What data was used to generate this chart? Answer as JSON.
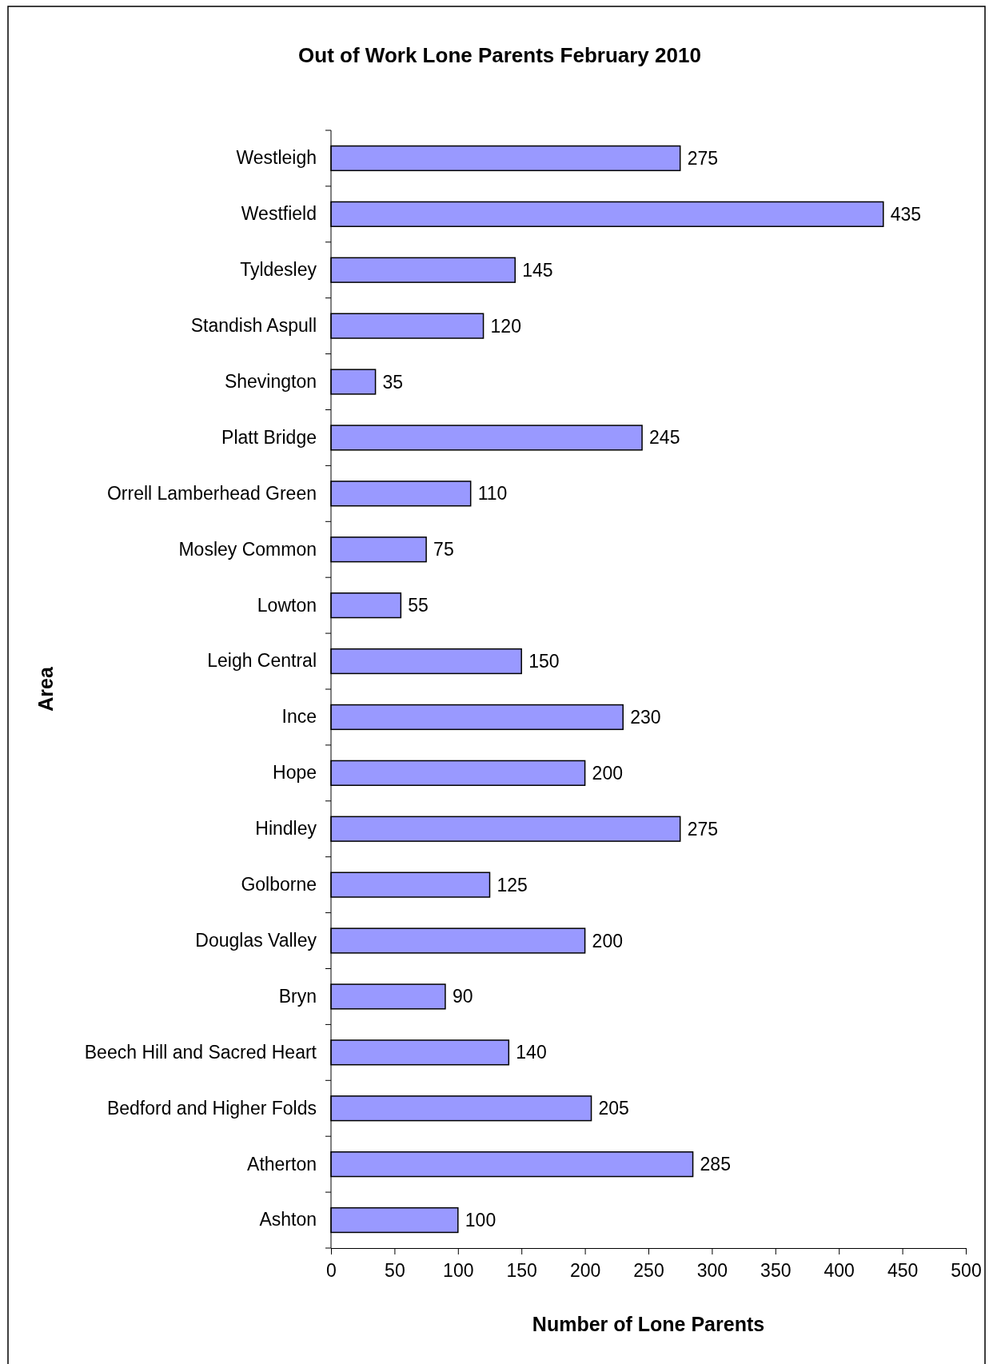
{
  "chart_data": {
    "type": "bar",
    "orientation": "horizontal",
    "title": "Out of Work Lone Parents February 2010",
    "xlabel": "Number of Lone Parents",
    "ylabel": "Area",
    "categories": [
      "Westleigh",
      "Westfield",
      "Tyldesley",
      "Standish Aspull",
      "Shevington",
      "Platt Bridge",
      "Orrell Lamberhead Green",
      "Mosley Common",
      "Lowton",
      "Leigh Central",
      "Ince",
      "Hope",
      "Hindley",
      "Golborne",
      "Douglas Valley",
      "Bryn",
      "Beech Hill and Sacred Heart",
      "Bedford and Higher Folds",
      "Atherton",
      "Ashton"
    ],
    "values": [
      275,
      435,
      145,
      120,
      35,
      245,
      110,
      75,
      55,
      150,
      230,
      200,
      275,
      125,
      200,
      90,
      140,
      205,
      285,
      100
    ],
    "color": "#9999ff",
    "xlim": [
      0,
      500
    ],
    "xticks": [
      0,
      50,
      100,
      150,
      200,
      250,
      300,
      350,
      400,
      450,
      500
    ],
    "data_labels": true,
    "grid": false
  }
}
